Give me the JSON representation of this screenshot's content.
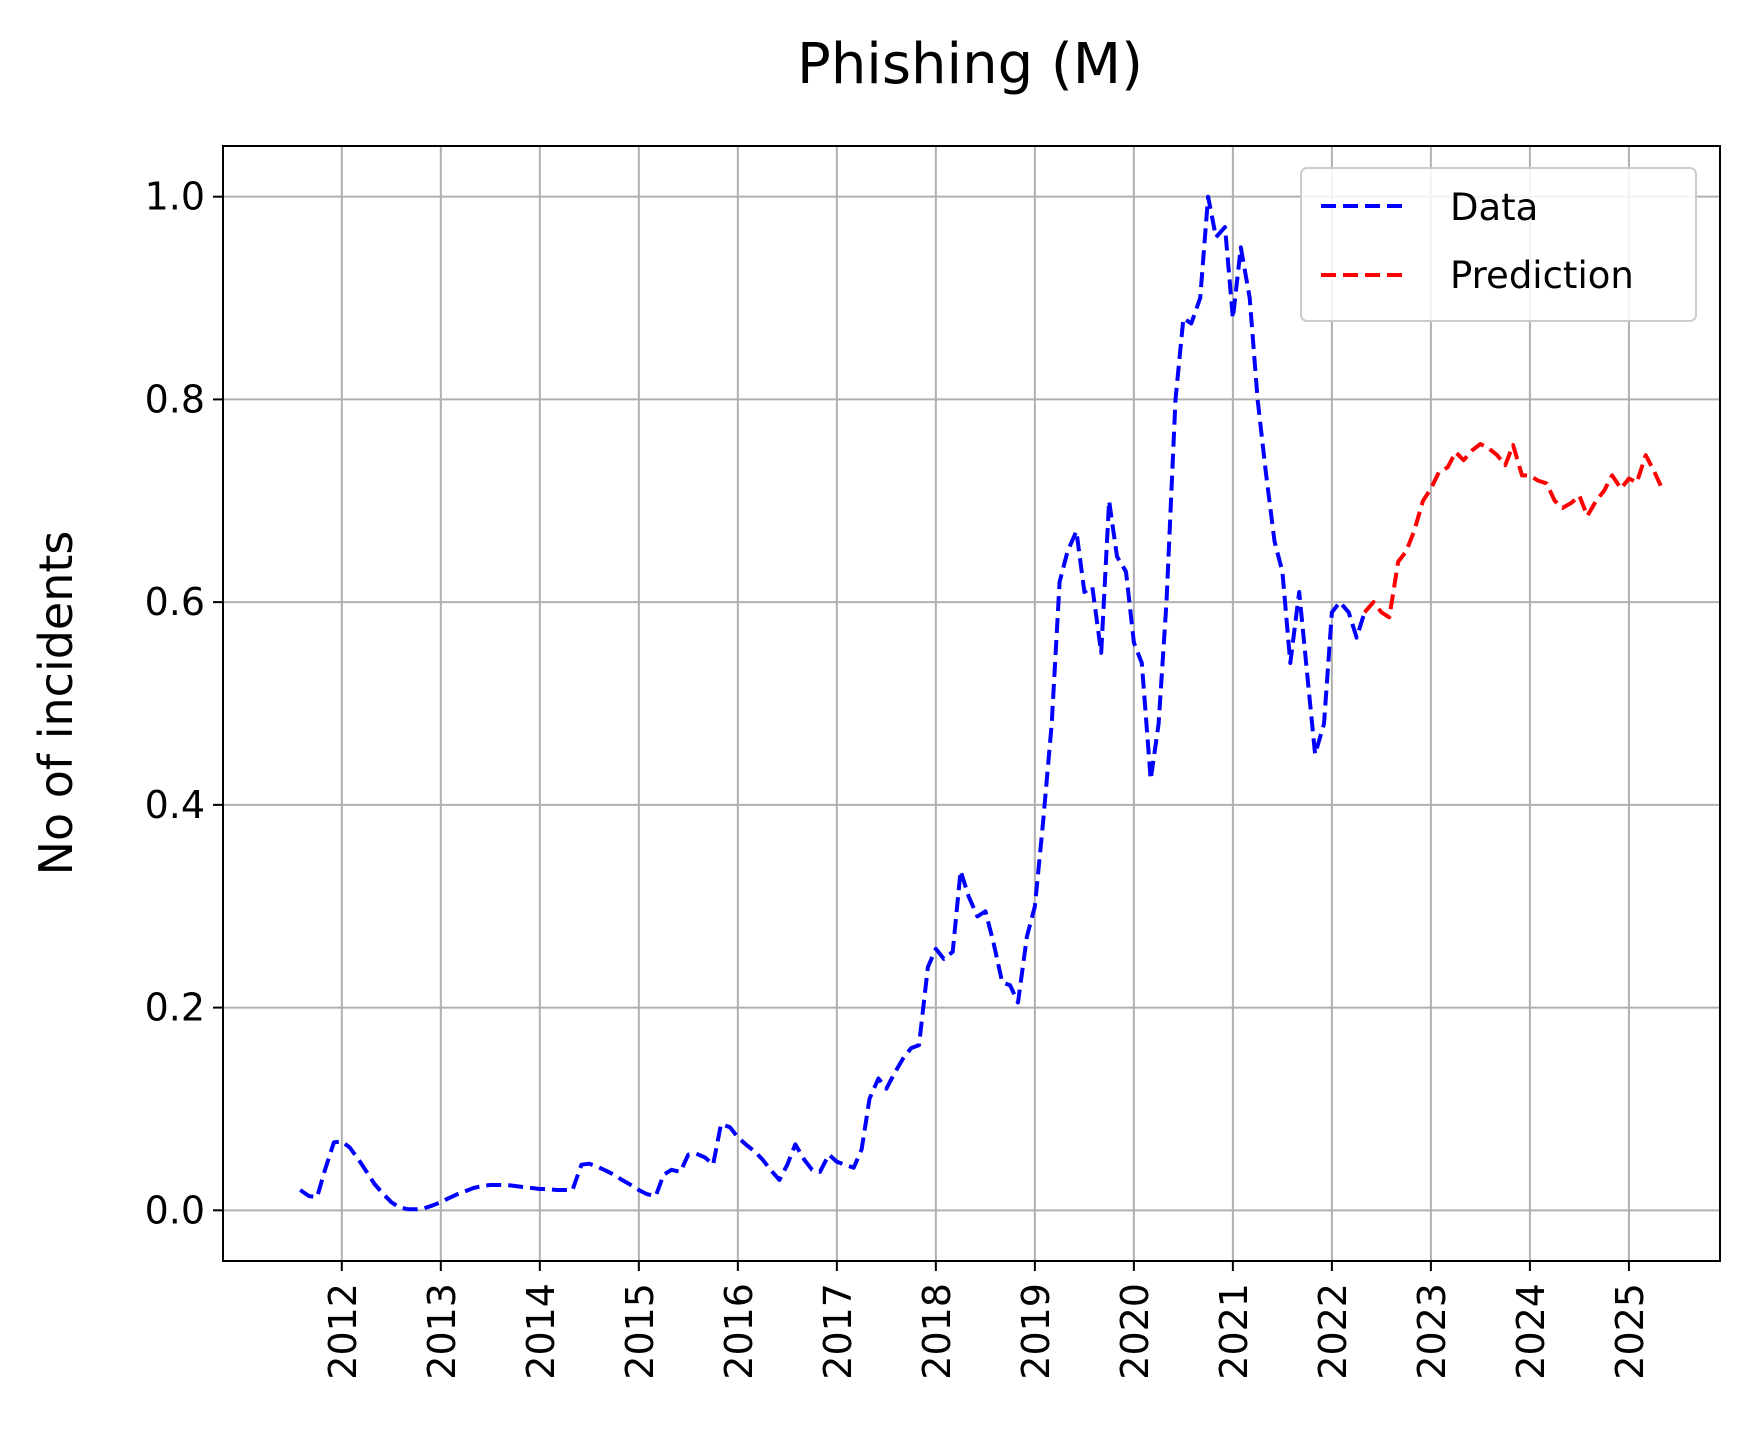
{
  "chart_data": {
    "type": "line",
    "title": "Phishing (M)",
    "xlabel": "",
    "ylabel": "No of incidents",
    "xlim": [
      2010.8,
      2025.92
    ],
    "ylim": [
      -0.05,
      1.05
    ],
    "x_ticks": [
      "2012",
      "2013",
      "2014",
      "2015",
      "2016",
      "2017",
      "2018",
      "2019",
      "2020",
      "2021",
      "2022",
      "2023",
      "2024",
      "2025"
    ],
    "y_ticks": [
      "0.0",
      "0.2",
      "0.4",
      "0.6",
      "0.8",
      "1.0"
    ],
    "grid": true,
    "legend_position": "top-right",
    "series": [
      {
        "name": "Data",
        "color": "#0000ff",
        "style": "dashed",
        "points": [
          [
            2011.58,
            0.02
          ],
          [
            2011.67,
            0.014
          ],
          [
            2011.75,
            0.013
          ],
          [
            2011.83,
            0.04
          ],
          [
            2011.92,
            0.067
          ],
          [
            2012.0,
            0.068
          ],
          [
            2012.08,
            0.062
          ],
          [
            2012.17,
            0.05
          ],
          [
            2012.25,
            0.038
          ],
          [
            2012.33,
            0.026
          ],
          [
            2012.42,
            0.016
          ],
          [
            2012.5,
            0.008
          ],
          [
            2012.58,
            0.003
          ],
          [
            2012.67,
            0.001
          ],
          [
            2012.75,
            0.001
          ],
          [
            2012.83,
            0.002
          ],
          [
            2012.92,
            0.005
          ],
          [
            2013.0,
            0.008
          ],
          [
            2013.08,
            0.012
          ],
          [
            2013.17,
            0.016
          ],
          [
            2013.25,
            0.019
          ],
          [
            2013.33,
            0.022
          ],
          [
            2013.42,
            0.024
          ],
          [
            2013.5,
            0.025
          ],
          [
            2013.58,
            0.025
          ],
          [
            2013.67,
            0.025
          ],
          [
            2013.75,
            0.024
          ],
          [
            2013.83,
            0.023
          ],
          [
            2013.92,
            0.022
          ],
          [
            2014.0,
            0.021
          ],
          [
            2014.08,
            0.021
          ],
          [
            2014.17,
            0.02
          ],
          [
            2014.25,
            0.02
          ],
          [
            2014.33,
            0.02
          ],
          [
            2014.42,
            0.045
          ],
          [
            2014.5,
            0.046
          ],
          [
            2014.58,
            0.043
          ],
          [
            2014.67,
            0.039
          ],
          [
            2014.75,
            0.035
          ],
          [
            2014.83,
            0.03
          ],
          [
            2014.92,
            0.025
          ],
          [
            2015.0,
            0.02
          ],
          [
            2015.08,
            0.016
          ],
          [
            2015.17,
            0.014
          ],
          [
            2015.25,
            0.035
          ],
          [
            2015.33,
            0.04
          ],
          [
            2015.42,
            0.038
          ],
          [
            2015.5,
            0.055
          ],
          [
            2015.58,
            0.056
          ],
          [
            2015.67,
            0.052
          ],
          [
            2015.75,
            0.045
          ],
          [
            2015.83,
            0.085
          ],
          [
            2015.92,
            0.082
          ],
          [
            2016.0,
            0.072
          ],
          [
            2016.08,
            0.065
          ],
          [
            2016.17,
            0.058
          ],
          [
            2016.25,
            0.05
          ],
          [
            2016.33,
            0.04
          ],
          [
            2016.42,
            0.03
          ],
          [
            2016.5,
            0.045
          ],
          [
            2016.58,
            0.065
          ],
          [
            2016.67,
            0.05
          ],
          [
            2016.75,
            0.04
          ],
          [
            2016.83,
            0.038
          ],
          [
            2016.92,
            0.055
          ],
          [
            2017.0,
            0.048
          ],
          [
            2017.08,
            0.045
          ],
          [
            2017.17,
            0.042
          ],
          [
            2017.25,
            0.06
          ],
          [
            2017.33,
            0.11
          ],
          [
            2017.42,
            0.13
          ],
          [
            2017.5,
            0.12
          ],
          [
            2017.58,
            0.135
          ],
          [
            2017.67,
            0.15
          ],
          [
            2017.75,
            0.16
          ],
          [
            2017.83,
            0.163
          ],
          [
            2017.92,
            0.24
          ],
          [
            2018.0,
            0.258
          ],
          [
            2018.08,
            0.248
          ],
          [
            2018.17,
            0.255
          ],
          [
            2018.25,
            0.335
          ],
          [
            2018.33,
            0.31
          ],
          [
            2018.42,
            0.29
          ],
          [
            2018.5,
            0.295
          ],
          [
            2018.58,
            0.265
          ],
          [
            2018.67,
            0.225
          ],
          [
            2018.75,
            0.222
          ],
          [
            2018.83,
            0.205
          ],
          [
            2018.92,
            0.27
          ],
          [
            2019.0,
            0.3
          ],
          [
            2019.08,
            0.38
          ],
          [
            2019.17,
            0.48
          ],
          [
            2019.25,
            0.62
          ],
          [
            2019.33,
            0.65
          ],
          [
            2019.42,
            0.67
          ],
          [
            2019.5,
            0.61
          ],
          [
            2019.58,
            0.615
          ],
          [
            2019.67,
            0.55
          ],
          [
            2019.75,
            0.7
          ],
          [
            2019.83,
            0.645
          ],
          [
            2019.92,
            0.63
          ],
          [
            2020.0,
            0.56
          ],
          [
            2020.08,
            0.54
          ],
          [
            2020.17,
            0.425
          ],
          [
            2020.25,
            0.48
          ],
          [
            2020.33,
            0.6
          ],
          [
            2020.42,
            0.8
          ],
          [
            2020.5,
            0.88
          ],
          [
            2020.58,
            0.875
          ],
          [
            2020.67,
            0.9
          ],
          [
            2020.75,
            1.0
          ],
          [
            2020.83,
            0.96
          ],
          [
            2020.92,
            0.97
          ],
          [
            2021.0,
            0.88
          ],
          [
            2021.08,
            0.95
          ],
          [
            2021.17,
            0.9
          ],
          [
            2021.25,
            0.8
          ],
          [
            2021.33,
            0.73
          ],
          [
            2021.42,
            0.66
          ],
          [
            2021.5,
            0.63
          ],
          [
            2021.58,
            0.54
          ],
          [
            2021.67,
            0.61
          ],
          [
            2021.75,
            0.53
          ],
          [
            2021.83,
            0.45
          ],
          [
            2021.92,
            0.48
          ],
          [
            2022.0,
            0.59
          ],
          [
            2022.08,
            0.6
          ],
          [
            2022.17,
            0.59
          ],
          [
            2022.25,
            0.565
          ],
          [
            2022.33,
            0.59
          ]
        ]
      },
      {
        "name": "Prediction",
        "color": "#ff0000",
        "style": "dashed",
        "points": [
          [
            2022.33,
            0.59
          ],
          [
            2022.42,
            0.6
          ],
          [
            2022.5,
            0.59
          ],
          [
            2022.58,
            0.585
          ],
          [
            2022.67,
            0.64
          ],
          [
            2022.75,
            0.65
          ],
          [
            2022.83,
            0.67
          ],
          [
            2022.92,
            0.7
          ],
          [
            2023.0,
            0.712
          ],
          [
            2023.08,
            0.728
          ],
          [
            2023.17,
            0.733
          ],
          [
            2023.25,
            0.748
          ],
          [
            2023.33,
            0.74
          ],
          [
            2023.42,
            0.75
          ],
          [
            2023.5,
            0.756
          ],
          [
            2023.58,
            0.752
          ],
          [
            2023.67,
            0.745
          ],
          [
            2023.75,
            0.735
          ],
          [
            2023.83,
            0.755
          ],
          [
            2023.92,
            0.725
          ],
          [
            2024.0,
            0.725
          ],
          [
            2024.08,
            0.72
          ],
          [
            2024.17,
            0.717
          ],
          [
            2024.25,
            0.7
          ],
          [
            2024.33,
            0.693
          ],
          [
            2024.42,
            0.698
          ],
          [
            2024.5,
            0.705
          ],
          [
            2024.58,
            0.685
          ],
          [
            2024.67,
            0.7
          ],
          [
            2024.75,
            0.71
          ],
          [
            2024.83,
            0.725
          ],
          [
            2024.92,
            0.712
          ],
          [
            2025.0,
            0.722
          ],
          [
            2025.08,
            0.718
          ],
          [
            2025.17,
            0.745
          ],
          [
            2025.25,
            0.73
          ],
          [
            2025.33,
            0.713
          ]
        ]
      }
    ]
  }
}
